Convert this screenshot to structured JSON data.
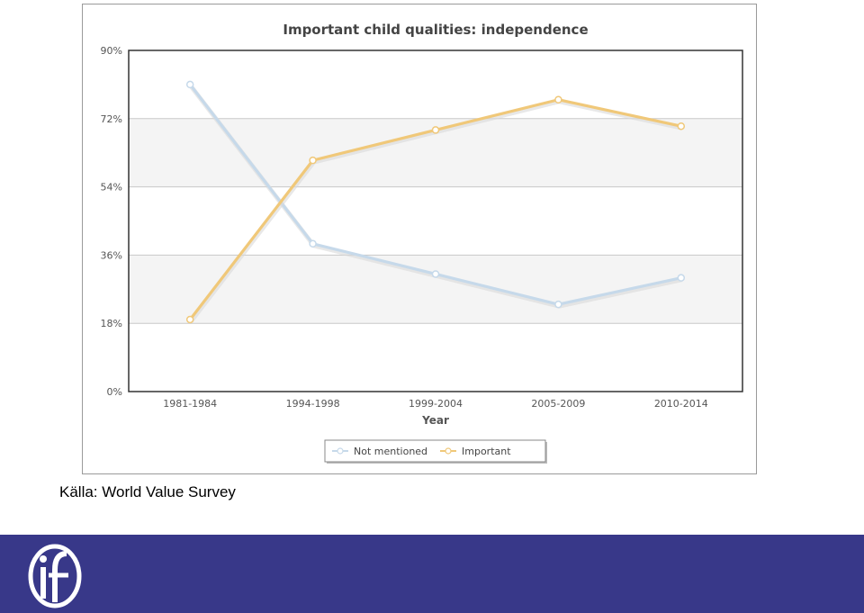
{
  "chart_data": {
    "type": "line",
    "title": "Important child qualities: independence",
    "xlabel": "Year",
    "ylabel": "",
    "categories": [
      "1981-1984",
      "1994-1998",
      "1999-2004",
      "2005-2009",
      "2010-2014"
    ],
    "ylim": [
      0,
      90
    ],
    "yticks": [
      "0%",
      "18%",
      "36%",
      "54%",
      "72%",
      "90%"
    ],
    "ytick_values": [
      0,
      18,
      36,
      54,
      72,
      90
    ],
    "grid": true,
    "legend_position": "bottom-center",
    "series": [
      {
        "name": "Not mentioned",
        "color": "#c6d9ea",
        "values": [
          81,
          39,
          31,
          23,
          30
        ]
      },
      {
        "name": "Important",
        "color": "#f0c879",
        "values": [
          19,
          61,
          69,
          77,
          70
        ]
      }
    ]
  },
  "source": "Källa: World Value Survey",
  "colors": {
    "footer": "#383889",
    "band": "#f4f4f4",
    "plot_border": "#333333"
  },
  "logo_icon": "ifau-logo-icon"
}
